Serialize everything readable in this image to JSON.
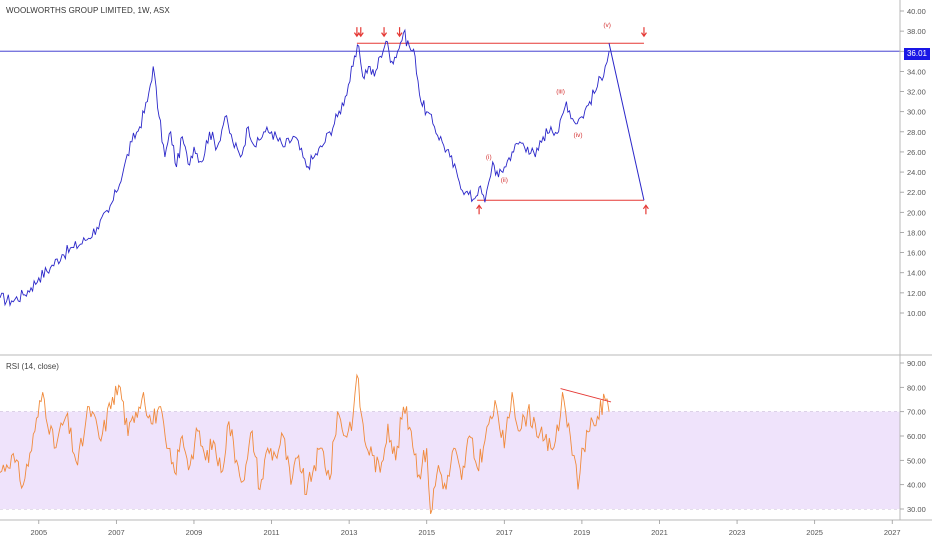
{
  "header": {
    "title": "WOOLWORTHS GROUP LIMITED, 1W, ASX",
    "rsi_title": "RSI (14, close)",
    "last_price": "36.01"
  },
  "colors": {
    "price_line": "#2b27c9",
    "rsi_line": "#f08a3c",
    "rsi_band": "#efe3fb",
    "resistance": "#e53935",
    "marker": "#e53935",
    "wave_label": "#d32f2f",
    "last_price_tag": "#1a17e6"
  },
  "chart_data": [
    {
      "type": "line",
      "title": "WOOLWORTHS GROUP LIMITED, 1W, ASX",
      "xlim": [
        2004.0,
        2027.2
      ],
      "ylim": [
        9.0,
        41.0
      ],
      "y_ticks": [
        "10.00",
        "12.00",
        "14.00",
        "16.00",
        "18.00",
        "20.00",
        "22.00",
        "24.00",
        "26.00",
        "28.00",
        "30.00",
        "32.00",
        "34.00",
        "36.00",
        "38.00",
        "40.00"
      ],
      "x_ticks": [
        "2005",
        "2007",
        "2009",
        "2011",
        "2013",
        "2015",
        "2017",
        "2019",
        "2021",
        "2023",
        "2025",
        "2027"
      ],
      "series": [
        {
          "x": [
            2004.0,
            2004.3,
            2004.6,
            2004.8,
            2005.0,
            2005.3,
            2005.6,
            2005.9,
            2006.2,
            2006.5,
            2006.8,
            2007.0,
            2007.2,
            2007.4,
            2007.6,
            2007.8,
            2007.95,
            2008.1,
            2008.25,
            2008.4,
            2008.55,
            2008.7,
            2008.85,
            2009.0,
            2009.2,
            2009.4,
            2009.6,
            2009.8,
            2010.0,
            2010.2,
            2010.4,
            2010.6,
            2010.8,
            2011.0,
            2011.3,
            2011.6,
            2011.9,
            2012.1,
            2012.3,
            2012.5,
            2012.7,
            2012.9,
            2013.1,
            2013.25,
            2013.35,
            2013.5,
            2013.65,
            2013.8,
            2013.95,
            2014.1,
            2014.25,
            2014.4,
            2014.55,
            2014.7,
            2014.85,
            2015.0,
            2015.2,
            2015.4,
            2015.6,
            2015.8,
            2016.0,
            2016.2,
            2016.35,
            2016.5,
            2016.6,
            2016.7,
            2016.85,
            2017.0,
            2017.2,
            2017.4,
            2017.6,
            2017.8,
            2018.0,
            2018.2,
            2018.4,
            2018.6,
            2018.8,
            2019.0,
            2019.2,
            2019.4,
            2019.6,
            2019.7
          ],
          "y": [
            11.5,
            11.2,
            11.8,
            12.5,
            13.5,
            14.5,
            15.8,
            16.5,
            17.2,
            18.5,
            20.0,
            22.0,
            24.5,
            27.0,
            28.5,
            31.0,
            34.5,
            29.5,
            25.5,
            28.0,
            24.5,
            27.5,
            24.8,
            26.5,
            25.0,
            28.0,
            26.5,
            29.5,
            27.0,
            25.5,
            28.5,
            26.5,
            28.0,
            28.0,
            26.5,
            27.5,
            24.5,
            25.5,
            26.5,
            28.0,
            29.5,
            31.5,
            34.5,
            36.5,
            33.5,
            34.5,
            33.5,
            35.5,
            37.0,
            35.0,
            36.0,
            37.8,
            36.5,
            35.5,
            31.0,
            30.0,
            28.5,
            27.0,
            25.5,
            23.5,
            22.0,
            21.3,
            22.5,
            21.0,
            23.0,
            25.0,
            23.5,
            24.5,
            26.0,
            27.0,
            26.5,
            25.5,
            27.5,
            28.5,
            28.0,
            31.0,
            29.0,
            29.5,
            31.0,
            32.5,
            34.5,
            36.0
          ]
        },
        {
          "name": "",
          "x": [
            2019.7,
            2020.6
          ],
          "y": [
            36.8,
            21.2
          ]
        }
      ],
      "levels": [
        {
          "y": 36.8,
          "x_start": 2013.2,
          "x_end": 2020.6
        },
        {
          "y": 21.2,
          "x_start": 2016.3,
          "x_end": 2020.6
        },
        {
          "y": 36.01
        }
      ],
      "wave_labels": [
        {
          "text": "(i)",
          "x": 2016.6,
          "y": 25.3
        },
        {
          "text": "(ii)",
          "x": 2017.0,
          "y": 23.0
        },
        {
          "text": "(iii)",
          "x": 2018.45,
          "y": 31.8
        },
        {
          "text": "(iv)",
          "x": 2018.9,
          "y": 27.5
        },
        {
          "text": "(v)",
          "x": 2019.65,
          "y": 38.4
        }
      ],
      "markers": [
        {
          "symbol": "down-arrow",
          "x": 2013.3,
          "y": 37.6
        },
        {
          "symbol": "down-arrow",
          "x": 2013.2,
          "y": 37.6
        },
        {
          "symbol": "down-arrow",
          "x": 2013.9,
          "y": 37.6
        },
        {
          "symbol": "down-arrow",
          "x": 2014.3,
          "y": 37.6
        },
        {
          "symbol": "down-arrow",
          "x": 2020.6,
          "y": 37.6
        },
        {
          "symbol": "up-arrow",
          "x": 2016.35,
          "y": 20.6
        },
        {
          "symbol": "up-arrow",
          "x": 2020.65,
          "y": 20.6
        }
      ]
    },
    {
      "type": "line",
      "title": "RSI (14, close)",
      "xlim": [
        2004.0,
        2027.2
      ],
      "ylim": [
        25.0,
        92.0
      ],
      "y_ticks": [
        "30.00",
        "40.00",
        "50.00",
        "60.00",
        "70.00",
        "80.00",
        "90.00"
      ],
      "band": [
        30,
        70
      ],
      "series": [
        {
          "x": [
            2004.0,
            2004.3,
            2004.6,
            2004.9,
            2005.1,
            2005.4,
            2005.7,
            2006.0,
            2006.3,
            2006.6,
            2006.9,
            2007.1,
            2007.3,
            2007.5,
            2007.7,
            2007.9,
            2008.1,
            2008.3,
            2008.5,
            2008.7,
            2008.9,
            2009.1,
            2009.3,
            2009.5,
            2009.7,
            2009.9,
            2010.1,
            2010.3,
            2010.5,
            2010.7,
            2010.9,
            2011.1,
            2011.3,
            2011.5,
            2011.7,
            2011.9,
            2012.1,
            2012.3,
            2012.5,
            2012.7,
            2012.9,
            2013.1,
            2013.2,
            2013.4,
            2013.6,
            2013.8,
            2014.0,
            2014.2,
            2014.4,
            2014.6,
            2014.8,
            2015.0,
            2015.1,
            2015.3,
            2015.5,
            2015.7,
            2015.9,
            2016.1,
            2016.3,
            2016.5,
            2016.6,
            2016.8,
            2017.0,
            2017.2,
            2017.4,
            2017.6,
            2017.8,
            2018.0,
            2018.2,
            2018.4,
            2018.5,
            2018.7,
            2018.8,
            2018.9,
            2019.0,
            2019.2,
            2019.4,
            2019.6,
            2019.7
          ],
          "y": [
            45,
            52,
            40,
            62,
            78,
            55,
            68,
            48,
            72,
            58,
            76,
            80,
            60,
            70,
            78,
            65,
            72,
            55,
            45,
            60,
            48,
            62,
            50,
            58,
            45,
            66,
            50,
            42,
            62,
            38,
            55,
            52,
            60,
            40,
            52,
            36,
            48,
            55,
            42,
            70,
            60,
            68,
            85,
            58,
            52,
            45,
            65,
            50,
            72,
            62,
            44,
            55,
            28,
            48,
            38,
            55,
            42,
            60,
            47,
            58,
            65,
            72,
            55,
            78,
            62,
            70,
            65,
            58,
            55,
            62,
            78,
            60,
            52,
            38,
            55,
            62,
            68,
            75,
            70
          ]
        },
        {
          "name": "",
          "x": [
            2018.45,
            2019.75
          ],
          "y": [
            79.5,
            74.0
          ]
        }
      ]
    }
  ]
}
